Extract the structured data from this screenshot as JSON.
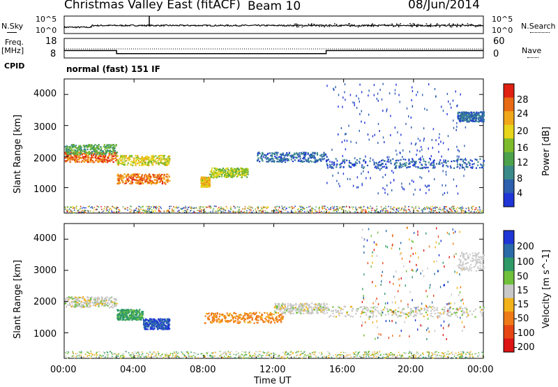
{
  "header": {
    "title": "Christmas Valley East (fitACF)",
    "beam": "Beam 10",
    "date": "08/Jun/2014"
  },
  "side_labels": {
    "nsky": "N.Sky",
    "nsearch": "N.Search",
    "freq": "Freq.",
    "freq_unit": "[MHz]",
    "nave": "Nave",
    "cpid": "CPID",
    "mode": "normal (fast) 151 IF"
  },
  "noise_panel": {
    "left_ticks": [
      "10^5",
      "10^0"
    ],
    "right_ticks": [
      "10^5",
      "10^0"
    ]
  },
  "freq_panel": {
    "left_ticks": [
      "18",
      "8"
    ],
    "right_ticks": [
      "60",
      "0"
    ],
    "freq_mhz_segments": [
      {
        "t_start": 0.0,
        "t_end": 3.0,
        "freq": 11.8
      },
      {
        "t_start": 3.0,
        "t_end": 15.0,
        "freq": 10.2
      },
      {
        "t_start": 15.0,
        "t_end": 24.0,
        "freq": 11.8
      }
    ],
    "nave_levels": {
      "primary": 11.3,
      "secondary": 10.9
    }
  },
  "x_axis": {
    "label": "Time UT",
    "ticks": [
      "00:00",
      "04:00",
      "08:00",
      "12:00",
      "16:00",
      "20:00",
      "00:00"
    ]
  },
  "power_panel": {
    "ylabel": "Slant Range [km]",
    "yticks": [
      "1000",
      "2000",
      "3000",
      "4000"
    ],
    "colorbar": {
      "label": "Power [dB]",
      "ticks": [
        "4",
        "8",
        "12",
        "16",
        "20",
        "24",
        "28"
      ],
      "colors": [
        "#1f35d6",
        "#2c5fae",
        "#3b8a8a",
        "#4ca24a",
        "#7dbb2a",
        "#e6d51a",
        "#f0a71a",
        "#e86a14",
        "#e02010"
      ]
    }
  },
  "velocity_panel": {
    "ylabel": "Slant Range [km]",
    "yticks": [
      "1000",
      "2000",
      "3000",
      "4000"
    ],
    "colorbar": {
      "label": "Velocity [m s^-1]",
      "ticks": [
        "200",
        "100",
        "50",
        "15",
        "-15",
        "-50",
        "-100",
        "-200"
      ],
      "colors": [
        "#1f35d6",
        "#2a6aa8",
        "#2f9a67",
        "#6fc03a",
        "#c8c8c8",
        "#f2b21a",
        "#ef7a18",
        "#e64614",
        "#dc1414"
      ]
    }
  },
  "chart_data": [
    {
      "type": "heatmap",
      "title": "Power",
      "xlabel": "Time UT",
      "ylabel": "Slant Range [km]",
      "xlim": [
        0,
        24
      ],
      "ylim": [
        180,
        4500
      ],
      "colorbar_label": "Power [dB]",
      "colorbar_range": [
        0,
        30
      ],
      "features": [
        {
          "t_start": 0.0,
          "t_end": 3.0,
          "range_center_km": 2000,
          "power_db": 25
        },
        {
          "t_start": 0.0,
          "t_end": 3.0,
          "range_center_km": 2250,
          "power_db": 12
        },
        {
          "t_start": 3.0,
          "t_end": 6.0,
          "range_center_km": 1300,
          "power_db": 24
        },
        {
          "t_start": 3.0,
          "t_end": 6.0,
          "range_center_km": 1900,
          "power_db": 18
        },
        {
          "t_start": 7.8,
          "t_end": 8.3,
          "range_center_km": 1200,
          "power_db": 20
        },
        {
          "t_start": 8.3,
          "t_end": 10.5,
          "range_center_km": 1500,
          "power_db": 16
        },
        {
          "t_start": 11.0,
          "t_end": 15.0,
          "range_center_km": 2000,
          "power_db": 6
        },
        {
          "t_start": 15.0,
          "t_end": 24.0,
          "range_center_km": 1800,
          "power_db": 5
        },
        {
          "t_start": 22.5,
          "t_end": 24.0,
          "range_center_km": 3300,
          "power_db": 6
        }
      ]
    },
    {
      "type": "heatmap",
      "title": "Velocity",
      "xlabel": "Time UT",
      "ylabel": "Slant Range [km]",
      "xlim": [
        0,
        24
      ],
      "ylim": [
        180,
        4500
      ],
      "colorbar_label": "Velocity [m s^-1]",
      "colorbar_range": [
        -250,
        250
      ],
      "features": [
        {
          "t_start": 0.0,
          "t_end": 3.0,
          "range_center_km": 2000,
          "velocity": 0
        },
        {
          "t_start": 3.0,
          "t_end": 4.5,
          "range_center_km": 1600,
          "velocity": 60
        },
        {
          "t_start": 4.5,
          "t_end": 6.0,
          "range_center_km": 1300,
          "velocity": 200
        },
        {
          "t_start": 8.0,
          "t_end": 12.5,
          "range_center_km": 1500,
          "velocity": -60
        },
        {
          "t_start": 12.0,
          "t_end": 15.0,
          "range_center_km": 1800,
          "velocity": 0
        },
        {
          "t_start": 15.0,
          "t_end": 24.0,
          "range_center_km": 1700,
          "velocity": 0
        }
      ]
    }
  ]
}
